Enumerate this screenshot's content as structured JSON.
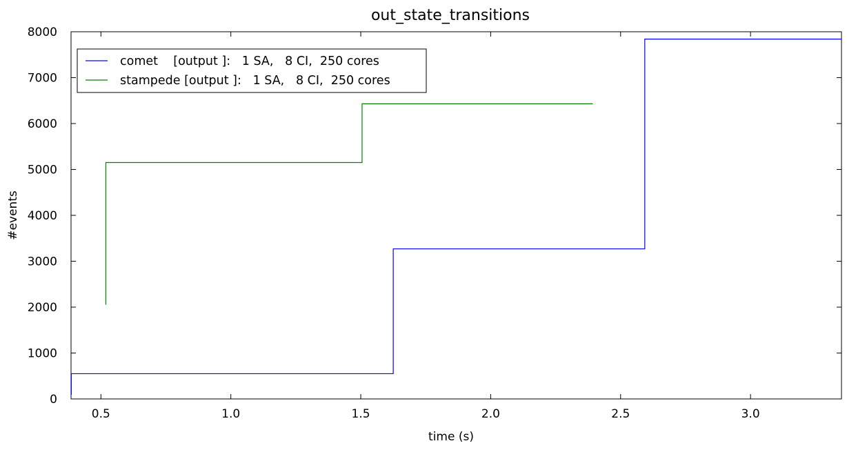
{
  "chart_data": {
    "type": "line",
    "title": "out_state_transitions",
    "xlabel": "time (s)",
    "ylabel": "#events",
    "xlim": [
      0.385,
      3.35
    ],
    "ylim": [
      0,
      8000
    ],
    "xticks": [
      0.5,
      1.0,
      1.5,
      2.0,
      2.5,
      3.0
    ],
    "xtick_labels": [
      "0.5",
      "1.0",
      "1.5",
      "2.0",
      "2.5",
      "3.0"
    ],
    "yticks": [
      0,
      1000,
      2000,
      3000,
      4000,
      5000,
      6000,
      7000,
      8000
    ],
    "ytick_labels": [
      "0",
      "1000",
      "2000",
      "3000",
      "4000",
      "5000",
      "6000",
      "7000",
      "8000"
    ],
    "grid": false,
    "legend_position": "top-left",
    "series": [
      {
        "name": "comet    [output ]:   1 SA,   8 CI,  250 cores",
        "color": "#0000ff",
        "step": "post",
        "x": [
          0.385,
          0.386,
          1.625,
          2.593,
          3.35
        ],
        "y": [
          100,
          550,
          3270,
          7840,
          7840
        ]
      },
      {
        "name": "stampede [output ]:   1 SA,   8 CI,  250 cores",
        "color": "#008000",
        "step": "post",
        "x": [
          0.518,
          0.519,
          1.505,
          2.393
        ],
        "y": [
          2060,
          5150,
          6430,
          6430
        ]
      }
    ]
  }
}
